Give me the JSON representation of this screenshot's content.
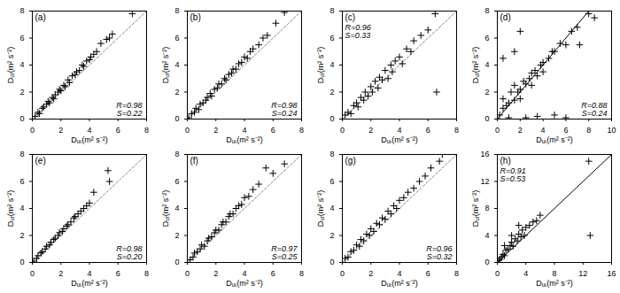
{
  "chart_data": [
    {
      "type": "scatter",
      "title": "(a)",
      "xlabel": "Dᵤₜ(m² s⁻²)",
      "ylabel": "Dᵤᵣ(m² s⁻²)",
      "color": "#000000",
      "marker": "plus",
      "line_style": "dashed",
      "annotations": [
        "R=0.98",
        "S=0.22"
      ],
      "xlim": [
        0,
        8
      ],
      "ylim": [
        0,
        8
      ],
      "xticks": [
        0,
        2,
        4,
        6,
        8
      ],
      "yticks": [
        0,
        2,
        4,
        6,
        8
      ],
      "x": [
        0.2,
        0.4,
        0.5,
        0.7,
        0.8,
        1.0,
        1.1,
        1.2,
        1.4,
        1.5,
        1.6,
        1.8,
        1.9,
        2.0,
        2.2,
        2.3,
        2.5,
        2.6,
        2.8,
        3.0,
        3.1,
        3.3,
        3.5,
        3.6,
        3.8,
        4.0,
        4.1,
        4.3,
        4.5,
        4.8,
        5.2,
        5.4,
        5.6,
        7.0
      ],
      "values": [
        0.2,
        0.5,
        0.4,
        0.8,
        0.9,
        1.1,
        1.3,
        1.2,
        1.6,
        1.5,
        1.8,
        2.0,
        2.2,
        2.1,
        2.5,
        2.4,
        2.9,
        2.7,
        3.2,
        3.3,
        3.5,
        3.6,
        4.0,
        3.9,
        4.3,
        4.4,
        4.6,
        4.8,
        5.0,
        5.6,
        5.9,
        6.0,
        6.3,
        7.8
      ]
    },
    {
      "type": "scatter",
      "title": "(b)",
      "xlabel": "Dᵤₜ(m² s⁻²)",
      "ylabel": "Dᵤᵣ(m² s⁻²)",
      "color": "#000000",
      "marker": "plus",
      "line_style": "dashed",
      "annotations": [
        "R=0.98",
        "S=0.24"
      ],
      "xlim": [
        0,
        8
      ],
      "ylim": [
        0,
        8
      ],
      "xticks": [
        0,
        2,
        4,
        6,
        8
      ],
      "yticks": [
        0,
        2,
        4,
        6,
        8
      ],
      "x": [
        0.1,
        0.3,
        0.5,
        0.6,
        0.8,
        0.9,
        1.1,
        1.3,
        1.4,
        1.6,
        1.7,
        1.9,
        2.1,
        2.2,
        2.4,
        2.6,
        2.7,
        2.9,
        3.1,
        3.2,
        3.4,
        3.6,
        3.8,
        4.0,
        4.2,
        4.4,
        4.6,
        5.0,
        5.3,
        5.6,
        6.2,
        6.8
      ],
      "values": [
        0.1,
        0.4,
        0.5,
        0.8,
        0.7,
        1.1,
        1.2,
        1.4,
        1.6,
        1.9,
        1.7,
        2.2,
        2.3,
        2.6,
        2.6,
        3.0,
        2.9,
        3.3,
        3.4,
        3.7,
        3.7,
        4.1,
        4.2,
        4.6,
        4.5,
        5.0,
        5.2,
        5.5,
        6.0,
        6.2,
        7.1,
        7.9
      ]
    },
    {
      "type": "scatter",
      "title": "(c)",
      "xlabel": "Dᵤₜ(m² s⁻²)",
      "ylabel": "Dᵤᵣ(m² s⁻²)",
      "color": "#000000",
      "marker": "plus",
      "line_style": "dashed",
      "annotations": [
        "R=0.96",
        "S=0.33"
      ],
      "xlim": [
        0,
        8
      ],
      "ylim": [
        0,
        8
      ],
      "xticks": [
        0,
        2,
        4,
        6,
        8
      ],
      "yticks": [
        0,
        2,
        4,
        6,
        8
      ],
      "x": [
        0.2,
        0.4,
        0.6,
        0.8,
        1.0,
        1.1,
        1.3,
        1.5,
        1.6,
        1.8,
        2.0,
        2.1,
        2.3,
        2.5,
        2.6,
        2.8,
        3.0,
        3.2,
        3.4,
        3.5,
        3.7,
        4.0,
        4.2,
        4.5,
        4.8,
        5.0,
        5.5,
        6.0,
        6.5,
        6.6
      ],
      "values": [
        0.3,
        0.5,
        0.4,
        1.0,
        1.2,
        0.9,
        1.6,
        1.4,
        2.0,
        1.7,
        2.4,
        2.0,
        2.8,
        2.3,
        3.1,
        2.9,
        3.6,
        3.0,
        4.0,
        3.5,
        4.3,
        4.6,
        4.1,
        5.2,
        5.0,
        5.8,
        6.2,
        6.6,
        7.8,
        2.0
      ]
    },
    {
      "type": "scatter",
      "title": "(d)",
      "xlabel": "Dᵤₜ(m² s⁻²)",
      "ylabel": "Dᵤᵣ(m² s⁻²)",
      "color": "#000000",
      "marker": "plus",
      "line_style": "solid",
      "annotations": [
        "R=0.88",
        "S=0.24"
      ],
      "xlim": [
        0,
        10
      ],
      "ylim": [
        0,
        8
      ],
      "xticks": [
        0,
        2,
        4,
        6,
        8,
        10
      ],
      "yticks": [
        0,
        2,
        4,
        6,
        8
      ],
      "x": [
        0.2,
        0.5,
        0.5,
        0.8,
        1.0,
        1.2,
        1.5,
        1.5,
        1.8,
        2.0,
        2.0,
        2.3,
        2.5,
        2.8,
        3.0,
        3.0,
        3.3,
        3.5,
        3.8,
        4.0,
        4.0,
        4.5,
        4.8,
        5.0,
        5.5,
        6.0,
        6.5,
        7.0,
        7.2,
        8.0,
        8.5,
        1.0,
        2.5,
        3.5,
        5.0,
        6.0,
        0.5,
        1.5,
        2.0
      ],
      "values": [
        0.3,
        0.8,
        1.5,
        1.0,
        1.2,
        2.0,
        1.4,
        2.5,
        2.0,
        2.2,
        1.5,
        2.8,
        2.6,
        3.0,
        3.4,
        2.5,
        3.6,
        3.2,
        4.0,
        4.2,
        3.5,
        4.5,
        5.0,
        5.0,
        5.6,
        5.5,
        6.5,
        6.8,
        5.5,
        7.8,
        7.5,
        0.1,
        0.1,
        0.2,
        0.3,
        0.1,
        4.5,
        5.0,
        6.5
      ]
    },
    {
      "type": "scatter",
      "title": "(e)",
      "xlabel": "Dᵤₜ(m² s⁻²)",
      "ylabel": "Dᵤᵣ(m² s⁻²)",
      "color": "#000000",
      "marker": "plus",
      "line_style": "dashed",
      "annotations": [
        "R=0.98",
        "S=0.20"
      ],
      "xlim": [
        0,
        8
      ],
      "ylim": [
        0,
        8
      ],
      "xticks": [
        0,
        2,
        4,
        6,
        8
      ],
      "yticks": [
        0,
        2,
        4,
        6,
        8
      ],
      "x": [
        0.1,
        0.3,
        0.4,
        0.6,
        0.7,
        0.9,
        1.0,
        1.2,
        1.3,
        1.5,
        1.6,
        1.8,
        1.9,
        2.1,
        2.2,
        2.4,
        2.5,
        2.7,
        2.9,
        3.0,
        3.2,
        3.4,
        3.6,
        3.8,
        4.0,
        4.3,
        5.3,
        5.4
      ],
      "values": [
        0.1,
        0.3,
        0.5,
        0.7,
        0.8,
        1.0,
        1.2,
        1.3,
        1.5,
        1.7,
        1.8,
        2.0,
        2.2,
        2.3,
        2.5,
        2.7,
        2.8,
        3.0,
        3.3,
        3.4,
        3.6,
        3.8,
        4.0,
        4.2,
        4.4,
        5.2,
        6.8,
        6.0
      ]
    },
    {
      "type": "scatter",
      "title": "(f)",
      "xlabel": "Dᵤₜ(m² s⁻²)",
      "ylabel": "Dᵤᵣ(m² s⁻²)",
      "color": "#000000",
      "marker": "plus",
      "line_style": "dashed",
      "annotations": [
        "R=0.97",
        "S=0.25"
      ],
      "xlim": [
        0,
        8
      ],
      "ylim": [
        0,
        8
      ],
      "xticks": [
        0,
        2,
        4,
        6,
        8
      ],
      "yticks": [
        0,
        2,
        4,
        6,
        8
      ],
      "x": [
        0.2,
        0.4,
        0.5,
        0.7,
        0.9,
        1.0,
        1.2,
        1.4,
        1.5,
        1.7,
        1.9,
        2.0,
        2.2,
        2.4,
        2.5,
        2.7,
        2.9,
        3.0,
        3.2,
        3.4,
        3.6,
        3.8,
        4.0,
        4.3,
        4.6,
        5.0,
        5.5,
        6.0,
        6.8
      ],
      "values": [
        0.2,
        0.4,
        0.7,
        0.8,
        1.0,
        1.3,
        1.2,
        1.6,
        1.8,
        1.9,
        2.2,
        2.4,
        2.4,
        2.8,
        3.0,
        3.0,
        3.4,
        3.6,
        3.6,
        4.0,
        4.2,
        4.3,
        4.8,
        4.9,
        5.4,
        5.8,
        7.0,
        6.6,
        7.3
      ]
    },
    {
      "type": "scatter",
      "title": "(g)",
      "xlabel": "Dᵤₜ(m² s⁻²)",
      "ylabel": "Dᵤᵣ(m² s⁻²)",
      "color": "#000000",
      "marker": "plus",
      "line_style": "dashed",
      "annotations": [
        "R=0.96",
        "S=0.32"
      ],
      "xlim": [
        0,
        8
      ],
      "ylim": [
        0,
        8
      ],
      "xticks": [
        0,
        2,
        4,
        6,
        8
      ],
      "yticks": [
        0,
        2,
        4,
        6,
        8
      ],
      "x": [
        0.2,
        0.4,
        0.6,
        0.8,
        1.0,
        1.2,
        1.3,
        1.5,
        1.7,
        1.9,
        2.0,
        2.2,
        2.4,
        2.6,
        2.8,
        3.0,
        3.2,
        3.4,
        3.6,
        3.8,
        4.0,
        4.3,
        4.6,
        5.0,
        5.4,
        5.8,
        6.2,
        6.8,
        7.0
      ],
      "values": [
        0.3,
        0.4,
        0.8,
        0.9,
        1.3,
        1.2,
        1.7,
        1.6,
        2.1,
        2.0,
        2.5,
        2.3,
        2.9,
        2.8,
        3.3,
        3.2,
        3.8,
        3.6,
        4.2,
        4.0,
        4.6,
        4.8,
        5.2,
        5.5,
        6.0,
        6.4,
        7.0,
        7.5,
        8.0
      ]
    },
    {
      "type": "scatter",
      "title": "(h)",
      "xlabel": "Dᵤₜ(m² s⁻²)",
      "ylabel": "Dᵤᵣ(m² s⁻²)",
      "color": "#000000",
      "marker": "plus",
      "line_style": "solid",
      "annotations": [
        "R=0.91",
        "S=0.53"
      ],
      "xlim": [
        0,
        16
      ],
      "ylim": [
        0,
        16
      ],
      "xticks": [
        0,
        4,
        8,
        12,
        16
      ],
      "yticks": [
        0,
        4,
        8,
        12,
        16
      ],
      "x": [
        0.2,
        0.4,
        0.6,
        0.8,
        1.0,
        1.2,
        1.5,
        1.8,
        2.0,
        2.2,
        2.5,
        2.8,
        3.0,
        3.3,
        3.5,
        3.8,
        4.0,
        4.5,
        5.0,
        5.5,
        6.0,
        12.8,
        13.0,
        1.0,
        2.0,
        3.0
      ],
      "values": [
        0.3,
        0.5,
        0.8,
        1.2,
        1.0,
        1.8,
        2.0,
        2.5,
        3.0,
        2.4,
        3.5,
        3.2,
        4.2,
        3.8,
        4.8,
        4.0,
        5.2,
        5.5,
        6.0,
        6.2,
        7.0,
        15.0,
        4.0,
        2.5,
        4.0,
        5.5
      ]
    }
  ]
}
